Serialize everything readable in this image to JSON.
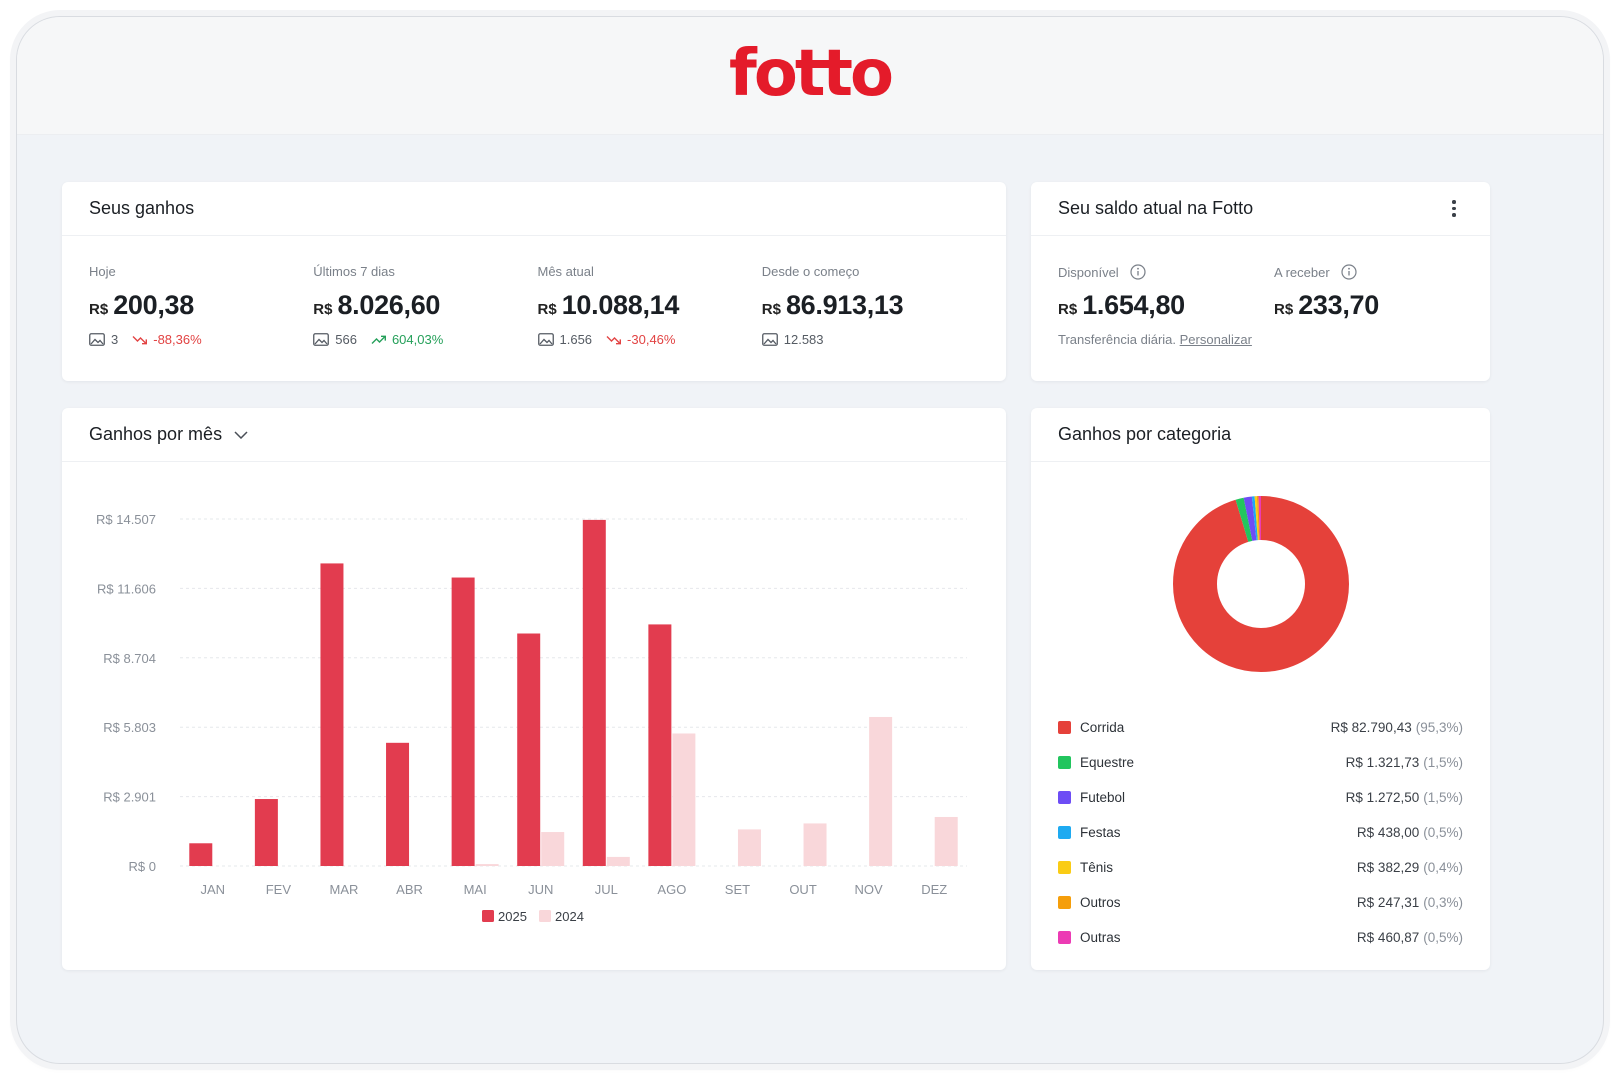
{
  "brand": {
    "logo_text": "fotto",
    "color": "#e41b2a"
  },
  "earnings": {
    "title": "Seus ganhos",
    "stats": [
      {
        "label": "Hoje",
        "currency": "R$",
        "amount": "200,38",
        "photos": "3",
        "trend": "-88,36%",
        "trend_dir": "down"
      },
      {
        "label": "Últimos 7 dias",
        "currency": "R$",
        "amount": "8.026,60",
        "photos": "566",
        "trend": "604,03%",
        "trend_dir": "up"
      },
      {
        "label": "Mês atual",
        "currency": "R$",
        "amount": "10.088,14",
        "photos": "1.656",
        "trend": "-30,46%",
        "trend_dir": "down"
      },
      {
        "label": "Desde o começo",
        "currency": "R$",
        "amount": "86.913,13",
        "photos": "12.583",
        "trend": "",
        "trend_dir": "none"
      }
    ]
  },
  "balance": {
    "title": "Seu saldo atual na Fotto",
    "menu_icon": "kebab-menu-icon",
    "stats": [
      {
        "label": "Disponível",
        "currency": "R$",
        "amount": "1.654,80",
        "icon": "info-icon"
      },
      {
        "label": "A receber",
        "currency": "R$",
        "amount": "233,70",
        "icon": "info-icon"
      }
    ],
    "transfer_text": "Transferência diária.",
    "transfer_link": "Personalizar"
  },
  "monthly": {
    "title": "Ganhos por mês",
    "dropdown_icon": "chevron-down-icon"
  },
  "chart_data": {
    "type": "bar",
    "title": "Ganhos por mês",
    "categories": [
      "JAN",
      "FEV",
      "MAR",
      "ABR",
      "MAI",
      "JUN",
      "JUL",
      "AGO",
      "SET",
      "OUT",
      "NOV",
      "DEZ"
    ],
    "series": [
      {
        "name": "2025",
        "color": "#e23c4f",
        "values": [
          950,
          2800,
          12650,
          5150,
          12060,
          9720,
          14470,
          10100,
          0,
          0,
          0,
          0
        ]
      },
      {
        "name": "2024",
        "color": "#f9d7da",
        "values": [
          0,
          0,
          0,
          0,
          80,
          1420,
          380,
          5540,
          1530,
          1780,
          6230,
          2050
        ]
      }
    ],
    "yticks": [
      "R$ 0",
      "R$ 2.901",
      "R$ 5.803",
      "R$ 8.704",
      "R$ 11.606",
      "R$ 14.507"
    ],
    "ylim": [
      0,
      14507
    ],
    "grid": true,
    "legend_position": "bottom-center"
  },
  "categories": {
    "title": "Ganhos por categoria",
    "items": [
      {
        "name": "Corrida",
        "value": "R$ 82.790,43",
        "pct": "(95,3%)",
        "share": 95.3,
        "color": "#e5413a"
      },
      {
        "name": "Equestre",
        "value": "R$ 1.321,73",
        "pct": "(1,5%)",
        "share": 1.5,
        "color": "#22c55e"
      },
      {
        "name": "Futebol",
        "value": "R$ 1.272,50",
        "pct": "(1,5%)",
        "share": 1.5,
        "color": "#6d4df5"
      },
      {
        "name": "Festas",
        "value": "R$ 438,00",
        "pct": "(0,5%)",
        "share": 0.5,
        "color": "#1eaaf1"
      },
      {
        "name": "Tênis",
        "value": "R$ 382,29",
        "pct": "(0,4%)",
        "share": 0.4,
        "color": "#facc15"
      },
      {
        "name": "Outros",
        "value": "R$ 247,31",
        "pct": "(0,3%)",
        "share": 0.3,
        "color": "#f59e0b"
      },
      {
        "name": "Outras",
        "value": "R$ 460,87",
        "pct": "(0,5%)",
        "share": 0.5,
        "color": "#ec3bb4"
      }
    ]
  }
}
